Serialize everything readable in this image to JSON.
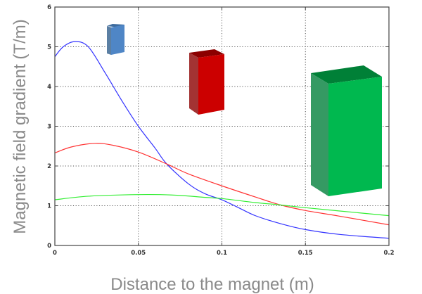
{
  "chart_data": {
    "type": "line",
    "title": "",
    "xlabel": "Distance to the magnet (m)",
    "ylabel": "Magnetic field gradient (T/m)",
    "xlim": [
      0,
      0.2
    ],
    "ylim": [
      0,
      6
    ],
    "xticks": [
      "0",
      "0.05",
      "0.1",
      "0.15",
      "0.2"
    ],
    "yticks": [
      "0",
      "1",
      "2",
      "3",
      "4",
      "5",
      "6"
    ],
    "grid": true,
    "grid_style": "dotted",
    "legend": "none",
    "series": [
      {
        "color": "#3333ff",
        "x": [
          0,
          0.005,
          0.012,
          0.02,
          0.03,
          0.04,
          0.05,
          0.06,
          0.067,
          0.08,
          0.09,
          0.1,
          0.11,
          0.12,
          0.135,
          0.15,
          0.17,
          0.2
        ],
        "y": [
          4.75,
          5.0,
          5.13,
          5.0,
          4.35,
          3.65,
          3.0,
          2.45,
          2.05,
          1.55,
          1.3,
          1.15,
          0.95,
          0.75,
          0.55,
          0.4,
          0.28,
          0.18
        ]
      },
      {
        "color": "#ff3333",
        "x": [
          0,
          0.01,
          0.024,
          0.035,
          0.05,
          0.067,
          0.08,
          0.1,
          0.12,
          0.135,
          0.15,
          0.17,
          0.2
        ],
        "y": [
          2.33,
          2.48,
          2.57,
          2.52,
          2.35,
          2.05,
          1.8,
          1.5,
          1.22,
          1.02,
          0.88,
          0.74,
          0.52
        ]
      },
      {
        "color": "#33ee33",
        "x": [
          0,
          0.02,
          0.05,
          0.07,
          0.09,
          0.1,
          0.12,
          0.135,
          0.15,
          0.17,
          0.2
        ],
        "y": [
          1.15,
          1.24,
          1.28,
          1.27,
          1.21,
          1.18,
          1.08,
          1.02,
          0.95,
          0.87,
          0.75
        ]
      }
    ],
    "annotations": [
      {
        "type": "magnet-image",
        "color": "#4f86c6",
        "size": "small"
      },
      {
        "type": "magnet-image",
        "color": "#cc0000",
        "size": "medium"
      },
      {
        "type": "magnet-image",
        "color": "#00b84f",
        "size": "large"
      }
    ]
  }
}
